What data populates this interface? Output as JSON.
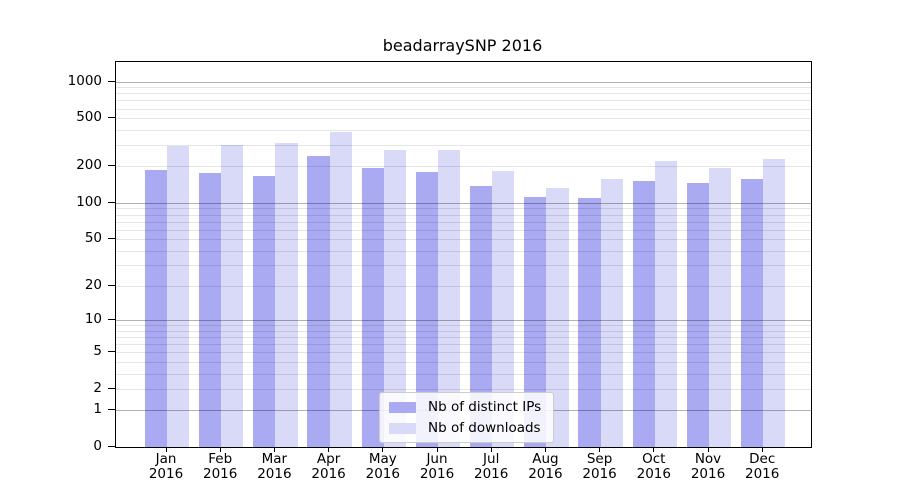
{
  "title": "beadarraySNP 2016",
  "legend": {
    "items": [
      {
        "label": "Nb of distinct IPs",
        "color": "#aaaaf2"
      },
      {
        "label": "Nb of downloads",
        "color": "#d9d9f8"
      }
    ]
  },
  "chart_data": {
    "type": "bar",
    "title": "beadarraySNP 2016",
    "categories": [
      "Jan 2016",
      "Feb 2016",
      "Mar 2016",
      "Apr 2016",
      "May 2016",
      "Jun 2016",
      "Jul 2016",
      "Aug 2016",
      "Sep 2016",
      "Oct 2016",
      "Nov 2016",
      "Dec 2016"
    ],
    "series": [
      {
        "name": "Nb of distinct IPs",
        "color": "#aaaaf2",
        "values": [
          187,
          177,
          168,
          244,
          195,
          179,
          139,
          111,
          110,
          153,
          145,
          159
        ]
      },
      {
        "name": "Nb of downloads",
        "color": "#d9d9f8",
        "values": [
          293,
          303,
          313,
          382,
          273,
          272,
          182,
          133,
          157,
          223,
          195,
          231
        ]
      }
    ],
    "xlabel": "",
    "ylabel": "",
    "yscale": "log10(value+1)",
    "yticks": [
      0,
      1,
      2,
      5,
      10,
      20,
      50,
      100,
      200,
      500,
      1000
    ],
    "ylim": [
      0,
      1430
    ],
    "grid": "horizontal, major decades dark + minor light, drawn over bars",
    "legend_position": "inside plot, lower center"
  }
}
